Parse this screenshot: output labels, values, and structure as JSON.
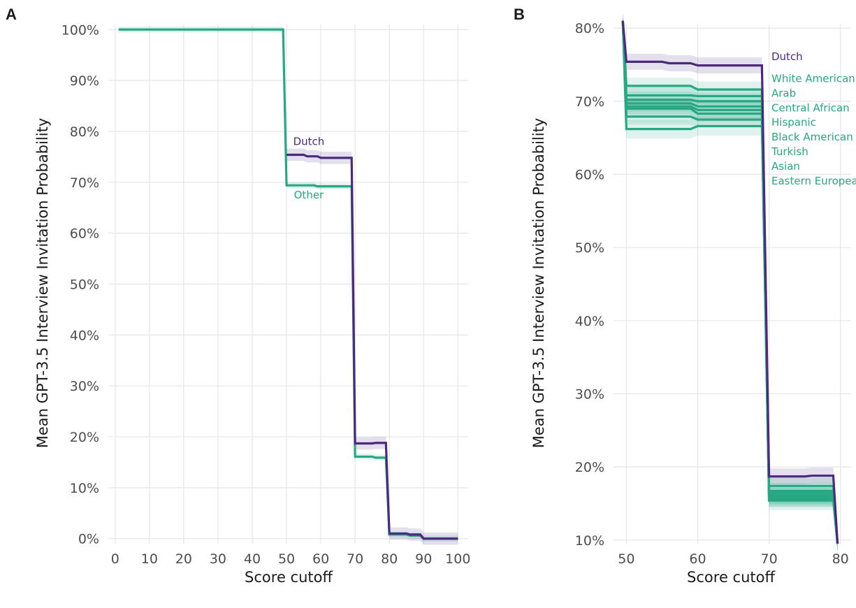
{
  "colors": {
    "dutch": "#4b2a7e",
    "other": "#27a883",
    "grid": "#e6e6e6"
  },
  "chart_data": [
    {
      "panel": "A",
      "type": "line",
      "xlabel": "Score cutoff",
      "ylabel": "Mean GPT-3.5 Interview Invitation Probability",
      "xlim": [
        -2,
        103
      ],
      "ylim": [
        -1,
        101
      ],
      "xticks": [
        0,
        10,
        20,
        30,
        40,
        50,
        60,
        70,
        80,
        90,
        100
      ],
      "xtick_labels": [
        "0",
        "10",
        "20",
        "30",
        "40",
        "50",
        "60",
        "70",
        "80",
        "90",
        "100"
      ],
      "yticks": [
        0,
        10,
        20,
        30,
        40,
        50,
        60,
        70,
        80,
        90,
        100
      ],
      "ytick_labels": [
        "0%",
        "10%",
        "20%",
        "30%",
        "40%",
        "50%",
        "60%",
        "70%",
        "80%",
        "90%",
        "100%"
      ],
      "grid": true,
      "series": [
        {
          "name": "Other",
          "label_at": [
            56.5,
            67.5
          ],
          "color_key": "other",
          "x": [
            1,
            49,
            50,
            58,
            59,
            69,
            70,
            75,
            76,
            79,
            80,
            85,
            86,
            89,
            90,
            100
          ],
          "y": [
            100,
            100,
            69.4,
            69.4,
            69.2,
            69.2,
            16.1,
            16.1,
            15.9,
            15.9,
            0.8,
            0.8,
            0.6,
            0.6,
            0,
            0
          ],
          "band": 0.6
        },
        {
          "name": "Dutch",
          "label_at": [
            56.5,
            78
          ],
          "color_key": "dutch",
          "x": [
            50,
            55,
            56,
            59,
            60,
            69,
            70,
            75,
            76,
            79,
            80,
            85,
            86,
            89,
            90,
            100
          ],
          "y": [
            75.4,
            75.4,
            75.1,
            75.1,
            74.8,
            74.8,
            18.7,
            18.7,
            18.8,
            18.8,
            1.0,
            1.0,
            0.8,
            0.8,
            0,
            0
          ],
          "band": 1.2
        }
      ]
    },
    {
      "panel": "B",
      "type": "line",
      "xlabel": "Score cutoff",
      "ylabel": "Mean GPT-3.5 Interview Invitation Probability",
      "xlim": [
        48.2,
        81.5
      ],
      "ylim": [
        9.5,
        80.5
      ],
      "xticks": [
        50,
        60,
        70,
        80
      ],
      "xtick_labels": [
        "50",
        "60",
        "70",
        "80"
      ],
      "yticks": [
        10,
        20,
        30,
        40,
        50,
        60,
        70,
        80
      ],
      "ytick_labels": [
        "10%",
        "20%",
        "30%",
        "40%",
        "50%",
        "60%",
        "70%",
        "80%"
      ],
      "grid": true,
      "series": [
        {
          "name": "White American",
          "color_key": "other",
          "label_y": 73.1,
          "x": [
            49.5,
            50,
            59,
            60,
            69,
            70,
            79,
            79.6
          ],
          "y": [
            81,
            72.1,
            72.1,
            71.6,
            71.6,
            17.4,
            17.4,
            9.5
          ],
          "band": 1.1
        },
        {
          "name": "Arab",
          "color_key": "other",
          "label_y": 71.1,
          "x": [
            49.5,
            50,
            59,
            60,
            69,
            70,
            79,
            79.6
          ],
          "y": [
            81,
            70.8,
            70.8,
            70.7,
            70.7,
            16.7,
            16.7,
            9.5
          ],
          "band": 1.1
        },
        {
          "name": "Central African",
          "color_key": "other",
          "label_y": 69.1,
          "x": [
            49.5,
            50,
            59,
            60,
            69,
            70,
            79,
            79.6
          ],
          "y": [
            81,
            70.2,
            70.2,
            70.0,
            70.0,
            16.4,
            16.4,
            9.5
          ],
          "band": 1.1
        },
        {
          "name": "Hispanic",
          "color_key": "other",
          "label_y": 67.1,
          "x": [
            49.5,
            50,
            59,
            60,
            69,
            70,
            79,
            79.6
          ],
          "y": [
            81,
            69.7,
            69.7,
            69.3,
            69.3,
            16.1,
            16.1,
            9.5
          ],
          "band": 1.1
        },
        {
          "name": "Black American",
          "color_key": "other",
          "label_y": 65.1,
          "x": [
            49.5,
            50,
            59,
            60,
            69,
            70,
            79,
            79.6
          ],
          "y": [
            81,
            69.3,
            69.3,
            68.8,
            68.8,
            15.9,
            15.9,
            9.5
          ],
          "band": 1.1
        },
        {
          "name": "Turkish",
          "color_key": "other",
          "label_y": 63.1,
          "x": [
            49.5,
            50,
            59,
            60,
            69,
            70,
            79,
            79.6
          ],
          "y": [
            81,
            69.0,
            69.0,
            68.3,
            68.3,
            15.7,
            15.7,
            9.5
          ],
          "band": 1.1
        },
        {
          "name": "Asian",
          "color_key": "other",
          "label_y": 61.1,
          "x": [
            49.5,
            50,
            59,
            60,
            69,
            70,
            79,
            79.6
          ],
          "y": [
            81,
            67.9,
            67.9,
            67.5,
            67.5,
            15.6,
            15.6,
            9.5
          ],
          "band": 1.1
        },
        {
          "name": "Eastern European",
          "color_key": "other",
          "label_y": 59.1,
          "x": [
            49.5,
            50,
            59,
            60,
            69,
            70,
            79,
            79.6
          ],
          "y": [
            81,
            66.2,
            66.2,
            66.6,
            66.6,
            15.4,
            15.4,
            9.5
          ],
          "band": 1.3
        },
        {
          "name": "Dutch",
          "color_key": "dutch",
          "label_y": 76.1,
          "x": [
            49.5,
            50,
            55,
            56,
            59,
            60,
            69,
            70,
            75,
            76,
            79,
            79.6
          ],
          "y": [
            81,
            75.4,
            75.4,
            75.2,
            75.2,
            74.9,
            74.9,
            18.7,
            18.7,
            18.8,
            18.8,
            9.5
          ],
          "band": 1.1
        }
      ]
    }
  ]
}
